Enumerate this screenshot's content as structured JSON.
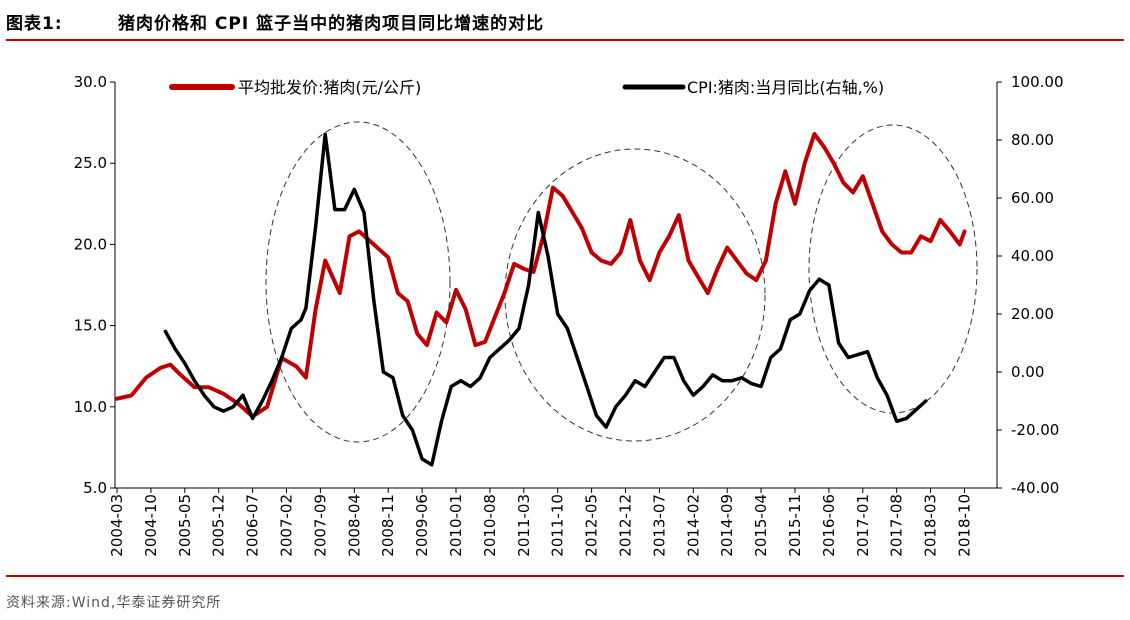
{
  "header": {
    "figure_label": "图表1:",
    "title": "猪肉价格和 CPI 篮子当中的猪肉项目同比增速的对比"
  },
  "footer": {
    "source": "资料来源:Wind,华泰证券研究所"
  },
  "colors": {
    "price_series": "#c00000",
    "cpi_series": "#000000",
    "rule": "#c00000"
  },
  "chart_data": {
    "type": "line",
    "title": "猪肉价格和 CPI 篮子当中的猪肉项目同比增速的对比",
    "x_ticks": [
      "2004-03",
      "2004-10",
      "2005-05",
      "2005-12",
      "2006-07",
      "2007-02",
      "2007-09",
      "2008-04",
      "2008-11",
      "2009-06",
      "2010-01",
      "2010-08",
      "2011-03",
      "2011-10",
      "2012-05",
      "2012-12",
      "2013-07",
      "2014-02",
      "2014-09",
      "2015-04",
      "2015-11",
      "2016-06",
      "2017-01",
      "2017-08",
      "2018-03",
      "2018-10"
    ],
    "y_left": {
      "range": [
        5.0,
        30.0
      ],
      "ticks": [
        "30.0",
        "25.0",
        "20.0",
        "15.0",
        "10.0",
        "5.0"
      ]
    },
    "y_right": {
      "range": [
        -40,
        100
      ],
      "ticks": [
        "100.00",
        "80.00",
        "60.00",
        "40.00",
        "20.00",
        "0.00",
        "-20.00",
        "-40.00"
      ]
    },
    "legend_position": "top",
    "annotations": "dashed ellipses around 2007-2009, 2011-2014, 2015-2018 cycles",
    "series": [
      {
        "name": "平均批发价:猪肉(元/公斤)",
        "axis": "left",
        "x": [
          "2004-03",
          "2004-06",
          "2004-09",
          "2004-12",
          "2005-02",
          "2005-04",
          "2005-07",
          "2005-10",
          "2006-01",
          "2006-04",
          "2006-07",
          "2006-10",
          "2007-01",
          "2007-04",
          "2007-06",
          "2007-08",
          "2007-10",
          "2008-01",
          "2008-03",
          "2008-05",
          "2008-08",
          "2008-11",
          "2009-01",
          "2009-03",
          "2009-05",
          "2009-07",
          "2009-09",
          "2009-11",
          "2010-01",
          "2010-03",
          "2010-05",
          "2010-07",
          "2010-09",
          "2010-11",
          "2011-01",
          "2011-03",
          "2011-05",
          "2011-07",
          "2011-09",
          "2011-11",
          "2012-01",
          "2012-03",
          "2012-05",
          "2012-07",
          "2012-09",
          "2012-11",
          "2013-01",
          "2013-03",
          "2013-05",
          "2013-07",
          "2013-09",
          "2013-11",
          "2014-01",
          "2014-03",
          "2014-05",
          "2014-07",
          "2014-09",
          "2014-11",
          "2015-01",
          "2015-03",
          "2015-05",
          "2015-07",
          "2015-09",
          "2015-11",
          "2016-01",
          "2016-03",
          "2016-05",
          "2016-07",
          "2016-09",
          "2016-11",
          "2017-01",
          "2017-03",
          "2017-05",
          "2017-07",
          "2017-09",
          "2017-11",
          "2018-01",
          "2018-03",
          "2018-05",
          "2018-07",
          "2018-09",
          "2018-10"
        ],
        "values": [
          10.5,
          10.7,
          11.8,
          12.4,
          12.6,
          12.0,
          11.2,
          11.2,
          10.8,
          10.2,
          9.4,
          10.0,
          13.0,
          12.5,
          11.8,
          16.0,
          19.0,
          17.0,
          20.5,
          20.8,
          20.0,
          19.2,
          17.0,
          16.5,
          14.5,
          13.8,
          15.8,
          15.2,
          17.2,
          16.0,
          13.8,
          14.0,
          15.5,
          17.0,
          18.8,
          18.5,
          18.3,
          20.5,
          23.5,
          23.0,
          22.0,
          21.0,
          19.5,
          19.0,
          18.8,
          19.5,
          21.5,
          19.0,
          17.8,
          19.5,
          20.5,
          21.8,
          19.0,
          18.0,
          17.0,
          18.5,
          19.8,
          19.0,
          18.2,
          17.8,
          19.0,
          22.5,
          24.5,
          22.5,
          25.0,
          26.8,
          26.0,
          25.0,
          23.8,
          23.2,
          24.2,
          22.5,
          20.8,
          20.0,
          19.5,
          19.5,
          20.5,
          20.2,
          21.5,
          20.8,
          20.0,
          20.8
        ]
      },
      {
        "name": "CPI:猪肉:当月同比(右轴,%)",
        "axis": "right",
        "x": [
          "2005-01",
          "2005-03",
          "2005-05",
          "2005-07",
          "2005-09",
          "2005-11",
          "2006-01",
          "2006-03",
          "2006-05",
          "2006-07",
          "2006-09",
          "2006-11",
          "2007-01",
          "2007-03",
          "2007-05",
          "2007-06",
          "2007-08",
          "2007-10",
          "2007-12",
          "2008-02",
          "2008-04",
          "2008-06",
          "2008-08",
          "2008-10",
          "2008-12",
          "2009-02",
          "2009-04",
          "2009-06",
          "2009-08",
          "2009-10",
          "2009-12",
          "2010-02",
          "2010-04",
          "2010-06",
          "2010-08",
          "2010-10",
          "2010-12",
          "2011-02",
          "2011-04",
          "2011-06",
          "2011-08",
          "2011-10",
          "2011-12",
          "2012-02",
          "2012-04",
          "2012-06",
          "2012-08",
          "2012-10",
          "2012-12",
          "2013-02",
          "2013-04",
          "2013-06",
          "2013-08",
          "2013-10",
          "2013-12",
          "2014-02",
          "2014-04",
          "2014-06",
          "2014-08",
          "2014-10",
          "2014-12",
          "2015-02",
          "2015-04",
          "2015-06",
          "2015-08",
          "2015-10",
          "2015-12",
          "2016-02",
          "2016-04",
          "2016-06",
          "2016-08",
          "2016-10",
          "2016-12",
          "2017-02",
          "2017-04",
          "2017-06",
          "2017-08",
          "2017-10",
          "2017-12",
          "2018-02"
        ],
        "values": [
          14.0,
          8.0,
          3.0,
          -3.0,
          -8.0,
          -12.0,
          -13.5,
          -12.0,
          -8.0,
          -16.0,
          -10.0,
          -3.0,
          5.0,
          15.0,
          18.0,
          22.0,
          50.0,
          82.0,
          56.0,
          56.0,
          63.0,
          55.0,
          25.0,
          0.0,
          -2.0,
          -15.0,
          -20.0,
          -30.0,
          -32.0,
          -17.0,
          -5.0,
          -3.0,
          -5.0,
          -2.0,
          5.0,
          8.0,
          11.0,
          15.0,
          30.0,
          55.0,
          40.0,
          20.0,
          15.0,
          5.0,
          -5.0,
          -15.0,
          -19.0,
          -12.0,
          -8.0,
          -3.0,
          -5.0,
          0.0,
          5.0,
          5.0,
          -3.0,
          -8.0,
          -5.0,
          -1.0,
          -3.0,
          -3.0,
          -2.0,
          -4.0,
          -5.0,
          5.0,
          8.0,
          18.0,
          20.0,
          28.0,
          32.0,
          30.0,
          10.0,
          5.0,
          6.0,
          7.0,
          -2.0,
          -8.0,
          -17.0,
          -16.0,
          -13.0,
          -10.0
        ]
      }
    ]
  }
}
